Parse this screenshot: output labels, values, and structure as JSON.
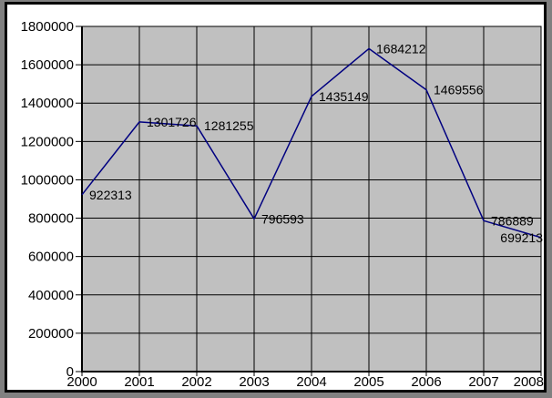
{
  "chart_data": {
    "type": "line",
    "title": "",
    "xlabel": "",
    "ylabel": "",
    "legend": "none",
    "grid": true,
    "categories": [
      "2000",
      "2001",
      "2002",
      "2003",
      "2004",
      "2005",
      "2006",
      "2007",
      "2008"
    ],
    "values": [
      922313,
      1301726,
      1281255,
      796593,
      1435149,
      1684212,
      1469556,
      786889,
      699213
    ],
    "data_labels": [
      "922313",
      "1301726",
      "1281255",
      "796593",
      "1435149",
      "1684212",
      "1469556",
      "786889",
      "699213"
    ],
    "ylim": [
      0,
      1800000
    ],
    "ytick_step": 200000,
    "ytick_labels": [
      "1800000",
      "1600000",
      "1400000",
      "1200000",
      "1000000",
      "800000",
      "600000",
      "400000",
      "200000",
      "0"
    ],
    "colors": {
      "line": "#000080",
      "plot_bg": "#c0c0c0",
      "chart_bg": "#ffffff",
      "outer_bg": "#808080",
      "grid": "#000000",
      "text": "#000000"
    }
  }
}
